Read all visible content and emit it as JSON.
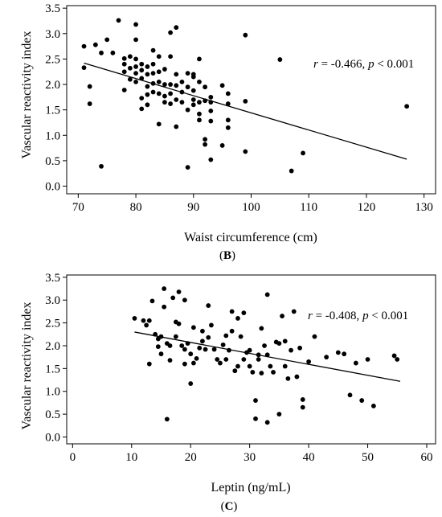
{
  "chart_data": [
    {
      "type": "scatter",
      "panel_label_prefix": "(",
      "panel_label_letter": "B",
      "panel_label_suffix": ")",
      "xlabel": "Waist circumference (cm)",
      "ylabel": "Vascular reactivity index",
      "xlim": [
        68,
        132
      ],
      "ylim": [
        -0.15,
        3.55
      ],
      "xticks": [
        70,
        80,
        90,
        100,
        110,
        120,
        130
      ],
      "yticks": [
        0.0,
        0.5,
        1.0,
        1.5,
        2.0,
        2.5,
        3.0,
        3.5
      ],
      "annotation": {
        "r_symbol": "r",
        "r_text": " = -0.466, ",
        "p_symbol": "p",
        "p_text": " < 0.001",
        "position": "upper-right"
      },
      "trendline": {
        "x": [
          71,
          127
        ],
        "y": [
          2.42,
          0.53
        ]
      },
      "points": [
        [
          71,
          2.75
        ],
        [
          71,
          2.33
        ],
        [
          72,
          1.96
        ],
        [
          72,
          1.62
        ],
        [
          73,
          2.78
        ],
        [
          74,
          0.39
        ],
        [
          74,
          2.62
        ],
        [
          75,
          2.88
        ],
        [
          76,
          2.62
        ],
        [
          77,
          3.26
        ],
        [
          78,
          2.51
        ],
        [
          78,
          2.4
        ],
        [
          78,
          2.25
        ],
        [
          78,
          1.89
        ],
        [
          79,
          2.55
        ],
        [
          79,
          2.32
        ],
        [
          79,
          2.1
        ],
        [
          80,
          3.18
        ],
        [
          80,
          2.88
        ],
        [
          80,
          2.5
        ],
        [
          80,
          2.35
        ],
        [
          80,
          2.22
        ],
        [
          80,
          2.05
        ],
        [
          81,
          2.4
        ],
        [
          81,
          2.28
        ],
        [
          81,
          2.12
        ],
        [
          81,
          1.73
        ],
        [
          81,
          1.52
        ],
        [
          82,
          2.35
        ],
        [
          82,
          2.2
        ],
        [
          82,
          1.96
        ],
        [
          82,
          1.8
        ],
        [
          82,
          1.6
        ],
        [
          83,
          2.67
        ],
        [
          83,
          2.4
        ],
        [
          83,
          2.22
        ],
        [
          83,
          2.02
        ],
        [
          83,
          1.85
        ],
        [
          84,
          2.55
        ],
        [
          84,
          2.25
        ],
        [
          84,
          2.05
        ],
        [
          84,
          1.82
        ],
        [
          84,
          1.22
        ],
        [
          85,
          2.3
        ],
        [
          85,
          2.0
        ],
        [
          85,
          1.77
        ],
        [
          85,
          1.65
        ],
        [
          86,
          3.02
        ],
        [
          86,
          2.55
        ],
        [
          86,
          2.0
        ],
        [
          86,
          1.82
        ],
        [
          86,
          1.62
        ],
        [
          87,
          3.12
        ],
        [
          87,
          2.2
        ],
        [
          87,
          1.98
        ],
        [
          87,
          1.7
        ],
        [
          87,
          1.17
        ],
        [
          88,
          2.05
        ],
        [
          88,
          1.85
        ],
        [
          88,
          1.65
        ],
        [
          89,
          2.22
        ],
        [
          89,
          1.95
        ],
        [
          89,
          1.5
        ],
        [
          89,
          0.37
        ],
        [
          90,
          2.2
        ],
        [
          90,
          2.15
        ],
        [
          90,
          1.88
        ],
        [
          90,
          1.7
        ],
        [
          90,
          1.6
        ],
        [
          91,
          2.5
        ],
        [
          91,
          2.05
        ],
        [
          91,
          1.65
        ],
        [
          91,
          1.42
        ],
        [
          91,
          1.3
        ],
        [
          92,
          1.95
        ],
        [
          92,
          1.68
        ],
        [
          92,
          0.92
        ],
        [
          92,
          0.82
        ],
        [
          93,
          1.75
        ],
        [
          93,
          1.65
        ],
        [
          93,
          1.48
        ],
        [
          93,
          1.28
        ],
        [
          93,
          0.52
        ],
        [
          95,
          1.98
        ],
        [
          95,
          0.8
        ],
        [
          96,
          1.82
        ],
        [
          96,
          1.62
        ],
        [
          96,
          1.3
        ],
        [
          96,
          1.15
        ],
        [
          99,
          2.97
        ],
        [
          99,
          1.67
        ],
        [
          99,
          0.68
        ],
        [
          105,
          2.49
        ],
        [
          107,
          0.3
        ],
        [
          109,
          0.65
        ],
        [
          127,
          1.57
        ]
      ]
    },
    {
      "type": "scatter",
      "panel_label_prefix": "(",
      "panel_label_letter": "C",
      "panel_label_suffix": ")",
      "xlabel": "Leptin (ng/mL)",
      "ylabel": "Vascular reactivity index",
      "xlim": [
        -1,
        61.5
      ],
      "ylim": [
        -0.15,
        3.55
      ],
      "xticks": [
        0,
        10,
        20,
        30,
        40,
        50,
        60
      ],
      "yticks": [
        0.0,
        0.5,
        1.0,
        1.5,
        2.0,
        2.5,
        3.0,
        3.5
      ],
      "annotation": {
        "r_symbol": "r",
        "r_text": " = -0.408, ",
        "p_symbol": "p",
        "p_text": " < 0.001",
        "position": "upper-right"
      },
      "trendline": {
        "x": [
          10.5,
          55.5
        ],
        "y": [
          2.3,
          1.22
        ]
      },
      "points": [
        [
          10.5,
          2.6
        ],
        [
          12,
          2.55
        ],
        [
          12.5,
          2.45
        ],
        [
          13,
          2.55
        ],
        [
          13,
          1.6
        ],
        [
          13.5,
          2.98
        ],
        [
          14,
          2.25
        ],
        [
          14.5,
          2.15
        ],
        [
          14.5,
          1.98
        ],
        [
          15,
          2.2
        ],
        [
          15,
          1.82
        ],
        [
          15.5,
          3.25
        ],
        [
          15.5,
          2.85
        ],
        [
          16,
          2.05
        ],
        [
          16,
          0.39
        ],
        [
          16.5,
          2.0
        ],
        [
          16.5,
          1.68
        ],
        [
          17,
          3.05
        ],
        [
          17.5,
          2.52
        ],
        [
          17.5,
          2.2
        ],
        [
          18,
          3.18
        ],
        [
          18,
          2.48
        ],
        [
          18.5,
          2.0
        ],
        [
          19,
          3.0
        ],
        [
          19,
          1.92
        ],
        [
          19,
          1.6
        ],
        [
          19.5,
          2.05
        ],
        [
          20,
          1.82
        ],
        [
          20,
          1.17
        ],
        [
          20.5,
          2.4
        ],
        [
          20.5,
          1.62
        ],
        [
          21,
          1.72
        ],
        [
          21.5,
          1.95
        ],
        [
          22,
          2.32
        ],
        [
          22,
          2.1
        ],
        [
          22.5,
          1.92
        ],
        [
          23,
          2.88
        ],
        [
          23,
          2.18
        ],
        [
          23.5,
          2.45
        ],
        [
          24,
          1.92
        ],
        [
          24.5,
          1.7
        ],
        [
          25,
          1.62
        ],
        [
          25.5,
          2.02
        ],
        [
          26,
          1.7
        ],
        [
          26,
          2.22
        ],
        [
          26.5,
          1.9
        ],
        [
          27,
          2.75
        ],
        [
          27,
          2.32
        ],
        [
          27.5,
          1.45
        ],
        [
          28,
          2.6
        ],
        [
          28,
          1.55
        ],
        [
          28.5,
          2.2
        ],
        [
          29,
          2.72
        ],
        [
          29,
          1.7
        ],
        [
          29.5,
          1.85
        ],
        [
          30,
          1.55
        ],
        [
          30,
          1.9
        ],
        [
          30.5,
          1.42
        ],
        [
          31,
          0.8
        ],
        [
          31,
          0.4
        ],
        [
          31.5,
          1.8
        ],
        [
          31.5,
          1.7
        ],
        [
          32,
          1.4
        ],
        [
          32,
          2.38
        ],
        [
          32.5,
          2.0
        ],
        [
          33,
          3.12
        ],
        [
          33,
          1.8
        ],
        [
          33,
          0.32
        ],
        [
          33.5,
          1.55
        ],
        [
          34,
          1.42
        ],
        [
          34.5,
          2.08
        ],
        [
          35,
          2.05
        ],
        [
          35,
          0.5
        ],
        [
          35.5,
          2.65
        ],
        [
          36,
          2.1
        ],
        [
          36,
          1.55
        ],
        [
          36.5,
          1.28
        ],
        [
          37,
          1.9
        ],
        [
          37.5,
          2.75
        ],
        [
          38,
          1.32
        ],
        [
          38.5,
          1.95
        ],
        [
          39,
          0.82
        ],
        [
          39,
          0.65
        ],
        [
          40,
          1.65
        ],
        [
          41,
          2.2
        ],
        [
          43,
          1.75
        ],
        [
          45,
          1.85
        ],
        [
          46,
          1.82
        ],
        [
          47,
          0.92
        ],
        [
          48,
          1.62
        ],
        [
          49,
          0.8
        ],
        [
          50,
          1.7
        ],
        [
          51,
          0.68
        ],
        [
          54.5,
          1.78
        ],
        [
          55,
          1.7
        ]
      ]
    }
  ]
}
